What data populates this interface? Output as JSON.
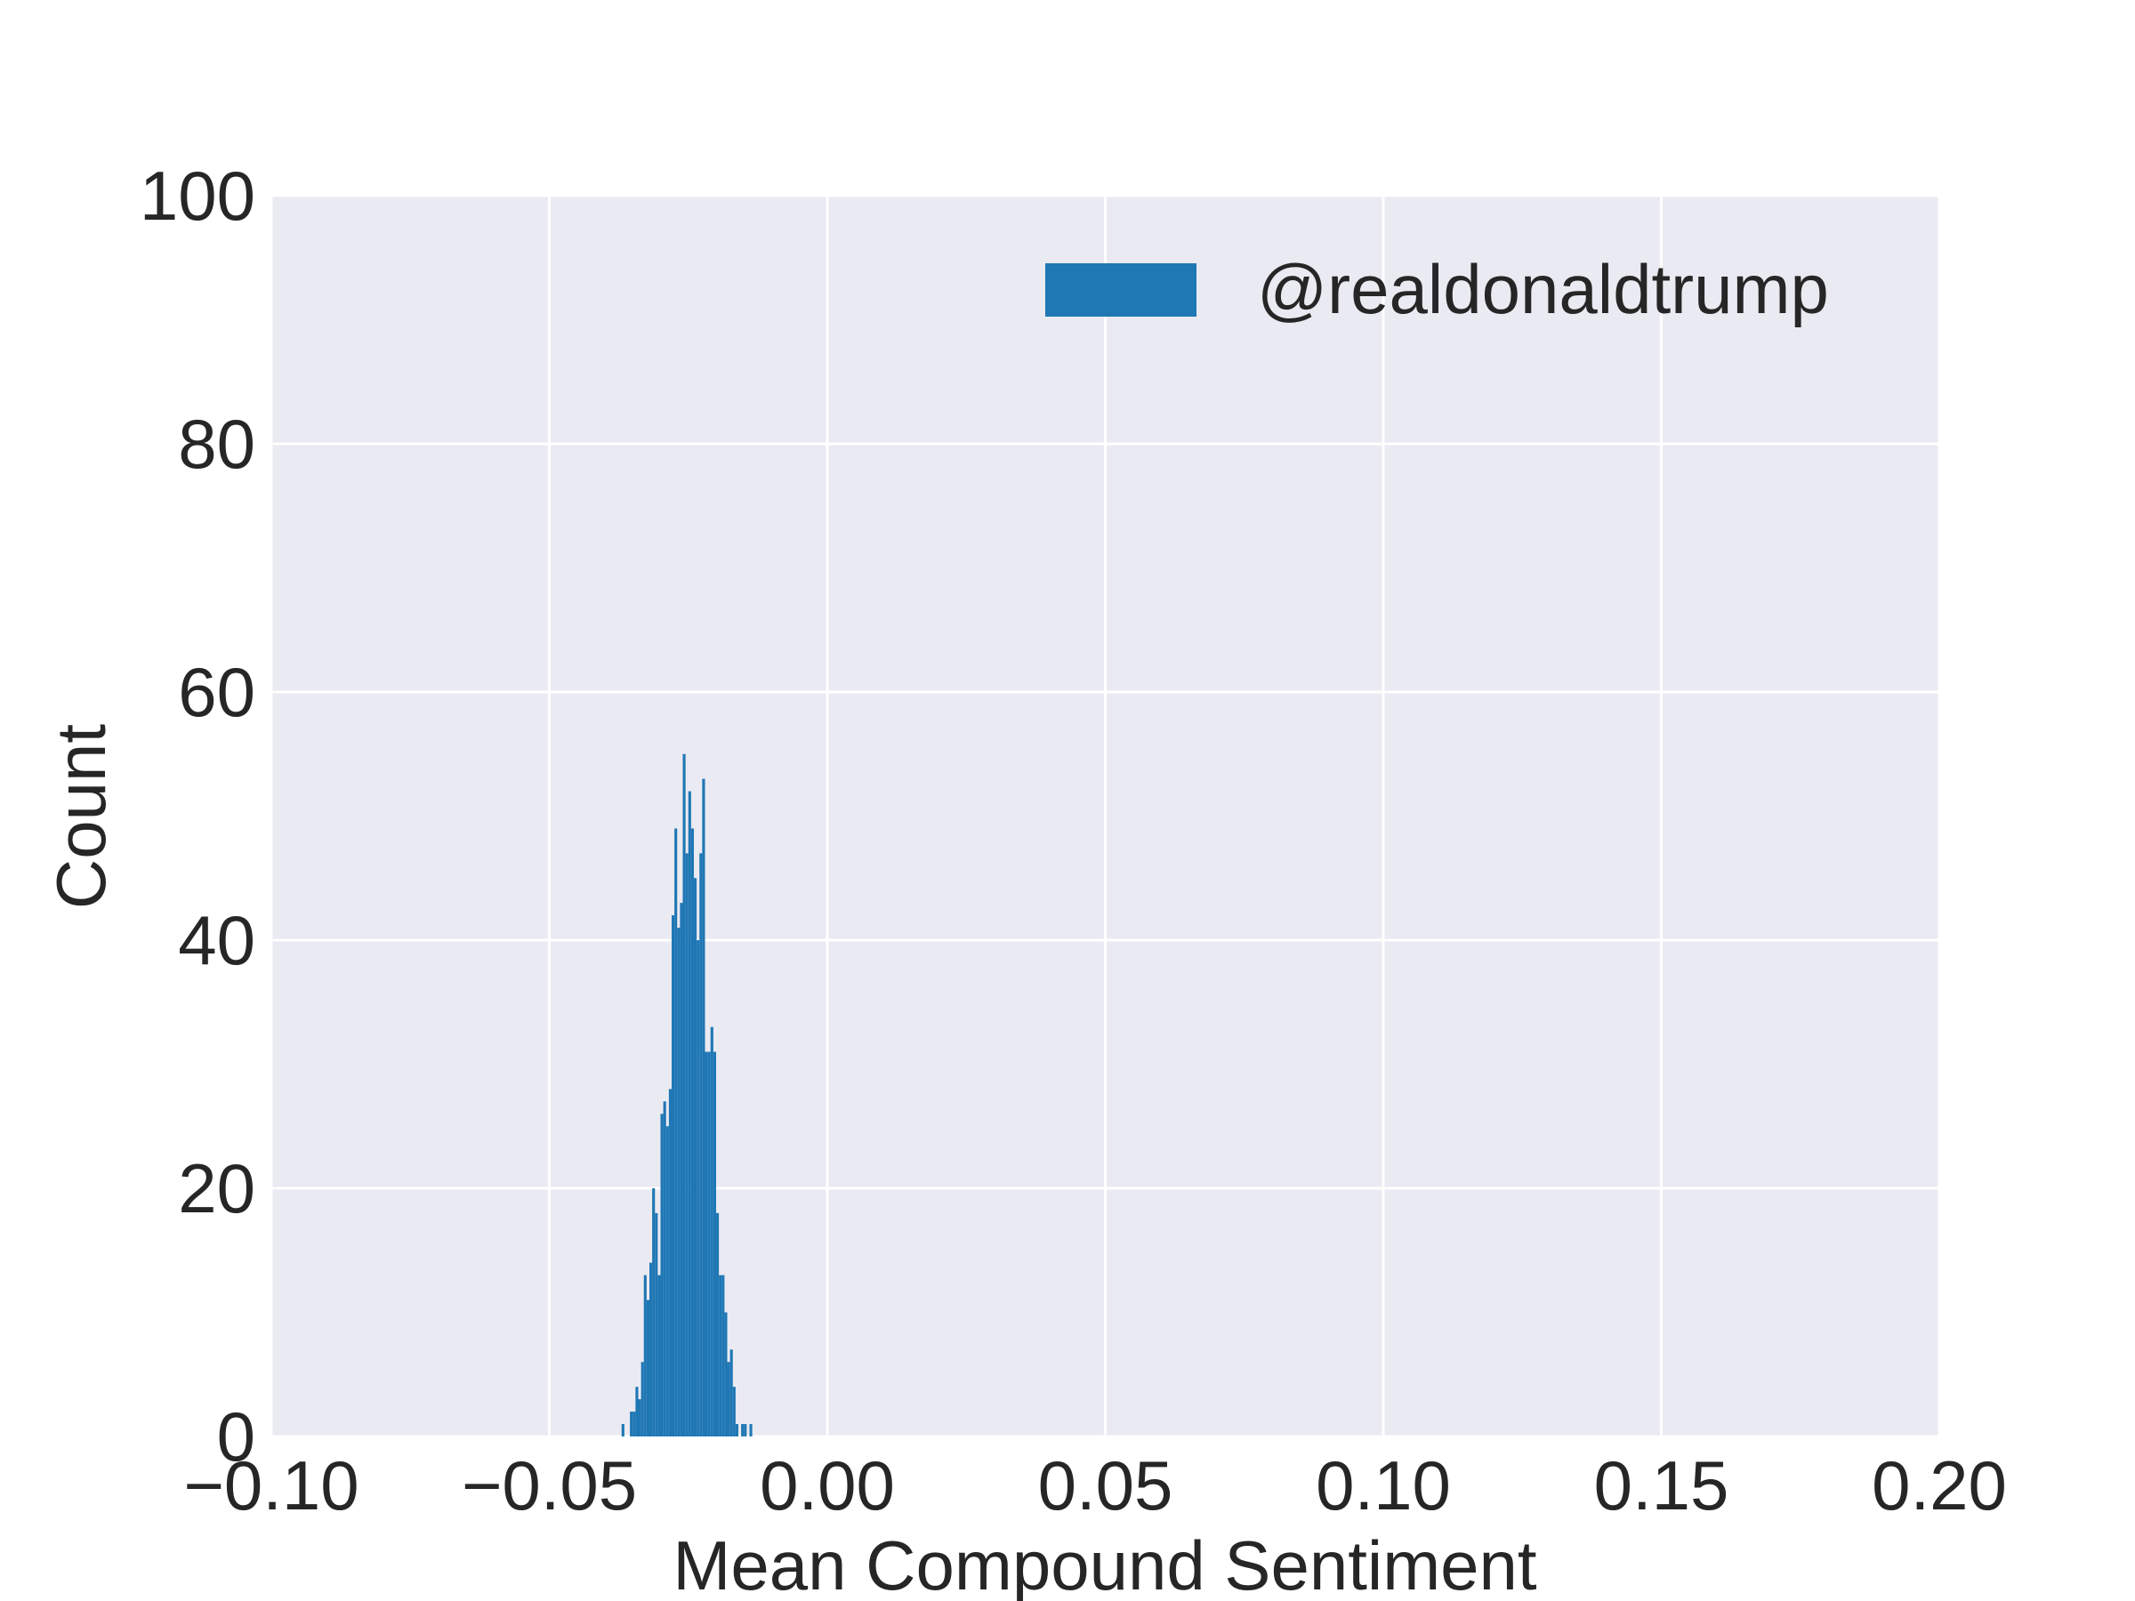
{
  "chart_data": {
    "type": "bar",
    "style": "histogram",
    "xlabel": "Mean Compound Sentiment",
    "ylabel": "Count",
    "xlim": [
      -0.1,
      0.2
    ],
    "ylim": [
      0,
      100
    ],
    "xticks": [
      -0.1,
      -0.05,
      0.0,
      0.05,
      0.1,
      0.15,
      0.2
    ],
    "xtick_labels": [
      "−0.10",
      "−0.05",
      "0.00",
      "0.05",
      "0.10",
      "0.15",
      "0.20"
    ],
    "yticks": [
      0,
      20,
      40,
      60,
      80,
      100
    ],
    "ytick_labels": [
      "0",
      "20",
      "40",
      "60",
      "80",
      "100"
    ],
    "grid": true,
    "legend": {
      "placement": "top-right",
      "entries": [
        "@realdonaldtrump"
      ]
    },
    "colors": {
      "bar": "#1f77b4",
      "plot_background": "#eaeaf2",
      "grid": "#ffffff",
      "text": "#262626"
    },
    "series": [
      {
        "name": "@realdonaldtrump",
        "bin_start": -0.037,
        "bin_width": 0.0005,
        "counts": [
          1,
          0,
          0,
          2,
          2,
          4,
          3,
          6,
          13,
          11,
          14,
          20,
          18,
          13,
          26,
          27,
          25,
          28,
          42,
          49,
          41,
          43,
          55,
          47,
          52,
          49,
          45,
          40,
          47,
          53,
          31,
          31,
          33,
          31,
          18,
          13,
          13,
          10,
          6,
          7,
          4,
          1,
          0,
          1,
          1,
          0,
          1
        ]
      }
    ]
  }
}
